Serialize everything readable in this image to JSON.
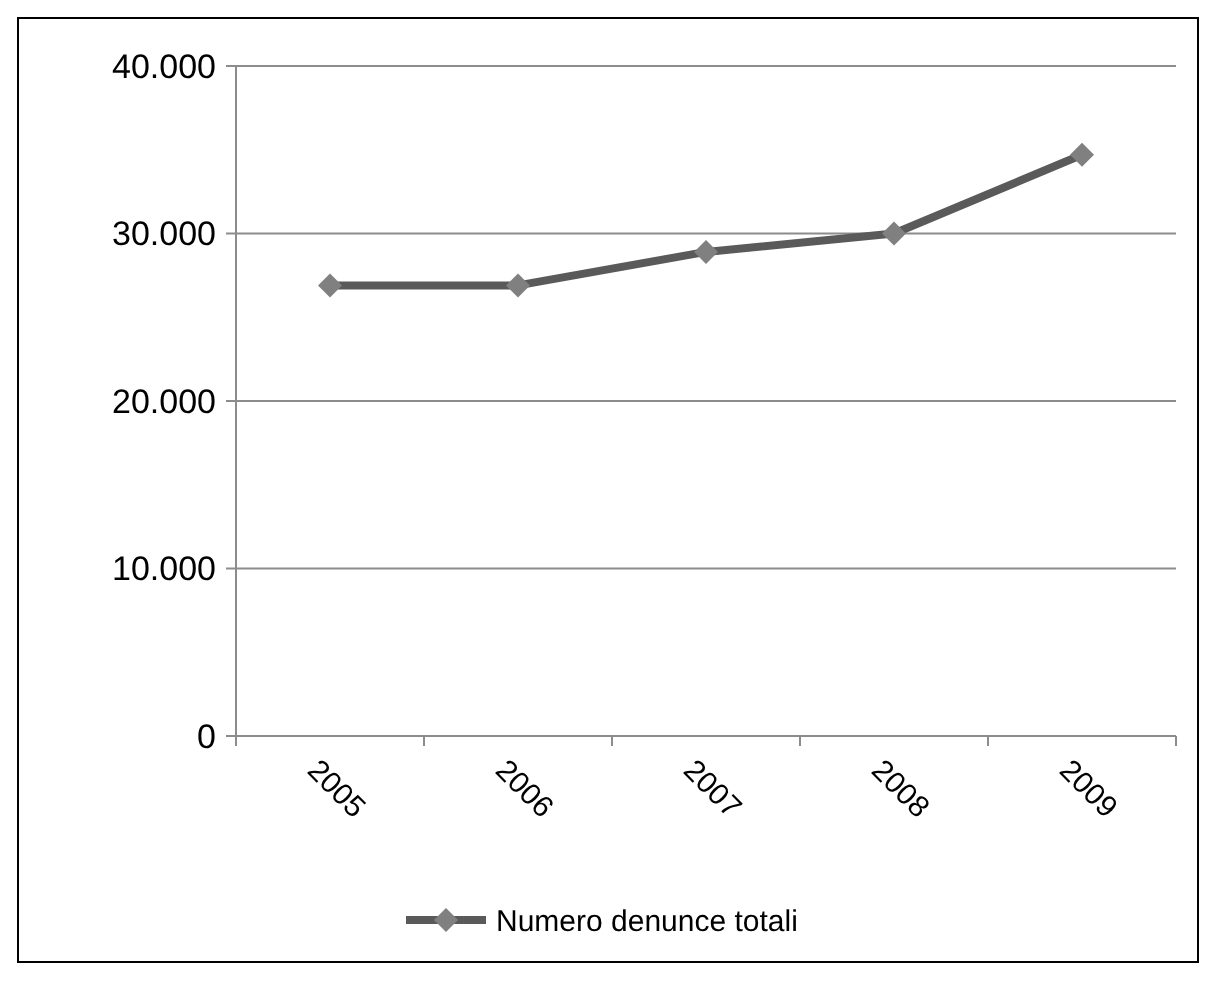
{
  "chart_data": {
    "type": "line",
    "categories": [
      "2005",
      "2006",
      "2007",
      "2008",
      "2009"
    ],
    "series": [
      {
        "name": "Numero denunce totali",
        "color": "#5a5a5a",
        "values": [
          26900,
          26900,
          28900,
          30000,
          34700
        ]
      }
    ],
    "ylim": [
      0,
      40000
    ],
    "yticks": [
      0,
      {
        "value": 10000,
        "label": "10.000"
      },
      {
        "value": 20000,
        "label": "20.000"
      },
      {
        "value": 30000,
        "label": "30.000"
      },
      {
        "value": 40000,
        "label": "40.000"
      }
    ],
    "grid": "y",
    "legend": "bottom",
    "marker": "diamond",
    "line_style": "solid"
  }
}
